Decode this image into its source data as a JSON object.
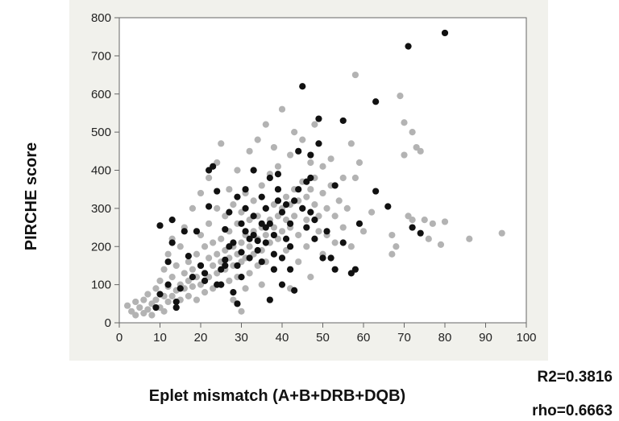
{
  "chart_data": {
    "type": "scatter",
    "xlabel": "Eplet mismatch (A+B+DRB+DQB)",
    "ylabel": "PIRCHE score",
    "xlim": [
      0,
      100
    ],
    "ylim": [
      0,
      800
    ],
    "xticks": [
      0,
      10,
      20,
      30,
      40,
      50,
      60,
      70,
      80,
      90,
      100
    ],
    "yticks": [
      0,
      100,
      200,
      300,
      400,
      500,
      600,
      700,
      800
    ],
    "grid": false,
    "legend": "none",
    "annotations": [
      {
        "text": "R2=0.3816"
      },
      {
        "text": "rho=0.6663"
      }
    ],
    "series": [
      {
        "color": "#b3b3b3",
        "points": [
          [
            2,
            45
          ],
          [
            3,
            30
          ],
          [
            4,
            20
          ],
          [
            4,
            55
          ],
          [
            5,
            40
          ],
          [
            6,
            25
          ],
          [
            6,
            60
          ],
          [
            7,
            35
          ],
          [
            7,
            75
          ],
          [
            8,
            50
          ],
          [
            8,
            20
          ],
          [
            9,
            90
          ],
          [
            9,
            60
          ],
          [
            10,
            40
          ],
          [
            10,
            110
          ],
          [
            11,
            70
          ],
          [
            11,
            140
          ],
          [
            11,
            30
          ],
          [
            12,
            95
          ],
          [
            12,
            55
          ],
          [
            12,
            180
          ],
          [
            13,
            120
          ],
          [
            13,
            70
          ],
          [
            13,
            220
          ],
          [
            14,
            85
          ],
          [
            14,
            150
          ],
          [
            14,
            40
          ],
          [
            15,
            100
          ],
          [
            15,
            200
          ],
          [
            15,
            60
          ],
          [
            16,
            130
          ],
          [
            16,
            90
          ],
          [
            16,
            250
          ],
          [
            17,
            110
          ],
          [
            17,
            160
          ],
          [
            17,
            70
          ],
          [
            18,
            140
          ],
          [
            18,
            95
          ],
          [
            18,
            300
          ],
          [
            19,
            120
          ],
          [
            19,
            180
          ],
          [
            19,
            60
          ],
          [
            20,
            150
          ],
          [
            20,
            100
          ],
          [
            20,
            230
          ],
          [
            20,
            340
          ],
          [
            21,
            130
          ],
          [
            21,
            200
          ],
          [
            21,
            80
          ],
          [
            22,
            170
          ],
          [
            22,
            120
          ],
          [
            22,
            260
          ],
          [
            22,
            380
          ],
          [
            23,
            150
          ],
          [
            23,
            210
          ],
          [
            23,
            90
          ],
          [
            24,
            180
          ],
          [
            24,
            130
          ],
          [
            24,
            300
          ],
          [
            24,
            420
          ],
          [
            25,
            160
          ],
          [
            25,
            220
          ],
          [
            25,
            100
          ],
          [
            25,
            470
          ],
          [
            26,
            190
          ],
          [
            26,
            140
          ],
          [
            26,
            280
          ],
          [
            27,
            170
          ],
          [
            27,
            240
          ],
          [
            27,
            110
          ],
          [
            27,
            350
          ],
          [
            28,
            200
          ],
          [
            28,
            150
          ],
          [
            28,
            310
          ],
          [
            28,
            60
          ],
          [
            29,
            180
          ],
          [
            29,
            260
          ],
          [
            29,
            120
          ],
          [
            29,
            400
          ],
          [
            30,
            210
          ],
          [
            30,
            160
          ],
          [
            30,
            290
          ],
          [
            30,
            30
          ],
          [
            31,
            230
          ],
          [
            31,
            170
          ],
          [
            31,
            340
          ],
          [
            31,
            90
          ],
          [
            32,
            200
          ],
          [
            32,
            270
          ],
          [
            32,
            130
          ],
          [
            32,
            450
          ],
          [
            33,
            240
          ],
          [
            33,
            180
          ],
          [
            33,
            320
          ],
          [
            34,
            220
          ],
          [
            34,
            280
          ],
          [
            34,
            150
          ],
          [
            34,
            480
          ],
          [
            35,
            250
          ],
          [
            35,
            190
          ],
          [
            35,
            360
          ],
          [
            35,
            100
          ],
          [
            36,
            230
          ],
          [
            36,
            300
          ],
          [
            36,
            160
          ],
          [
            36,
            520
          ],
          [
            37,
            270
          ],
          [
            37,
            210
          ],
          [
            37,
            390
          ],
          [
            38,
            250
          ],
          [
            38,
            310
          ],
          [
            38,
            140
          ],
          [
            38,
            460
          ],
          [
            39,
            280
          ],
          [
            39,
            220
          ],
          [
            39,
            410
          ],
          [
            40,
            300
          ],
          [
            40,
            240
          ],
          [
            40,
            170
          ],
          [
            40,
            560
          ],
          [
            41,
            270
          ],
          [
            41,
            330
          ],
          [
            41,
            190
          ],
          [
            42,
            310
          ],
          [
            42,
            250
          ],
          [
            42,
            440
          ],
          [
            42,
            90
          ],
          [
            43,
            280
          ],
          [
            43,
            350
          ],
          [
            43,
            500
          ],
          [
            44,
            320
          ],
          [
            44,
            230
          ],
          [
            44,
            160
          ],
          [
            45,
            300
          ],
          [
            45,
            370
          ],
          [
            45,
            480
          ],
          [
            46,
            270
          ],
          [
            46,
            330
          ],
          [
            46,
            200
          ],
          [
            47,
            350
          ],
          [
            47,
            420
          ],
          [
            47,
            120
          ],
          [
            48,
            310
          ],
          [
            48,
            380
          ],
          [
            48,
            520
          ],
          [
            49,
            280
          ],
          [
            49,
            240
          ],
          [
            50,
            340
          ],
          [
            50,
            410
          ],
          [
            50,
            180
          ],
          [
            51,
            300
          ],
          [
            51,
            230
          ],
          [
            52,
            360
          ],
          [
            52,
            430
          ],
          [
            53,
            280
          ],
          [
            53,
            210
          ],
          [
            54,
            320
          ],
          [
            55,
            250
          ],
          [
            55,
            380
          ],
          [
            56,
            300
          ],
          [
            57,
            470
          ],
          [
            57,
            200
          ],
          [
            58,
            650
          ],
          [
            58,
            380
          ],
          [
            59,
            420
          ],
          [
            60,
            240
          ],
          [
            62,
            290
          ],
          [
            67,
            180
          ],
          [
            67,
            230
          ],
          [
            68,
            200
          ],
          [
            69,
            595
          ],
          [
            70,
            525
          ],
          [
            70,
            440
          ],
          [
            71,
            280
          ],
          [
            72,
            500
          ],
          [
            72,
            270
          ],
          [
            73,
            460
          ],
          [
            74,
            450
          ],
          [
            75,
            270
          ],
          [
            76,
            220
          ],
          [
            77,
            260
          ],
          [
            79,
            205
          ],
          [
            80,
            265
          ],
          [
            86,
            220
          ],
          [
            94,
            235
          ]
        ]
      },
      {
        "color": "#111111",
        "points": [
          [
            9,
            40
          ],
          [
            10,
            75
          ],
          [
            10,
            255
          ],
          [
            12,
            160
          ],
          [
            12,
            100
          ],
          [
            13,
            210
          ],
          [
            13,
            270
          ],
          [
            14,
            40
          ],
          [
            14,
            55
          ],
          [
            15,
            90
          ],
          [
            16,
            240
          ],
          [
            17,
            175
          ],
          [
            18,
            120
          ],
          [
            19,
            240
          ],
          [
            20,
            150
          ],
          [
            21,
            130
          ],
          [
            21,
            110
          ],
          [
            22,
            400
          ],
          [
            22,
            305
          ],
          [
            23,
            410
          ],
          [
            24,
            100
          ],
          [
            24,
            345
          ],
          [
            25,
            140
          ],
          [
            25,
            100
          ],
          [
            26,
            165
          ],
          [
            26,
            150
          ],
          [
            26,
            245
          ],
          [
            27,
            290
          ],
          [
            27,
            200
          ],
          [
            28,
            80
          ],
          [
            28,
            210
          ],
          [
            29,
            150
          ],
          [
            29,
            50
          ],
          [
            29,
            330
          ],
          [
            30,
            260
          ],
          [
            30,
            185
          ],
          [
            30,
            120
          ],
          [
            31,
            300
          ],
          [
            31,
            240
          ],
          [
            31,
            350
          ],
          [
            32,
            220
          ],
          [
            32,
            170
          ],
          [
            33,
            230
          ],
          [
            33,
            280
          ],
          [
            33,
            400
          ],
          [
            34,
            190
          ],
          [
            34,
            215
          ],
          [
            35,
            260
          ],
          [
            35,
            160
          ],
          [
            35,
            330
          ],
          [
            36,
            300
          ],
          [
            36,
            210
          ],
          [
            36,
            250
          ],
          [
            37,
            260
          ],
          [
            37,
            380
          ],
          [
            37,
            60
          ],
          [
            38,
            230
          ],
          [
            38,
            140
          ],
          [
            38,
            180
          ],
          [
            39,
            390
          ],
          [
            39,
            320
          ],
          [
            39,
            350
          ],
          [
            40,
            290
          ],
          [
            40,
            170
          ],
          [
            40,
            100
          ],
          [
            41,
            310
          ],
          [
            41,
            220
          ],
          [
            42,
            200
          ],
          [
            42,
            140
          ],
          [
            42,
            260
          ],
          [
            43,
            320
          ],
          [
            43,
            85
          ],
          [
            44,
            350
          ],
          [
            44,
            450
          ],
          [
            45,
            620
          ],
          [
            45,
            300
          ],
          [
            46,
            370
          ],
          [
            46,
            250
          ],
          [
            47,
            440
          ],
          [
            47,
            380
          ],
          [
            47,
            290
          ],
          [
            48,
            220
          ],
          [
            48,
            270
          ],
          [
            49,
            470
          ],
          [
            49,
            535
          ],
          [
            50,
            170
          ],
          [
            51,
            240
          ],
          [
            52,
            170
          ],
          [
            53,
            140
          ],
          [
            53,
            360
          ],
          [
            55,
            210
          ],
          [
            55,
            530
          ],
          [
            57,
            130
          ],
          [
            58,
            140
          ],
          [
            59,
            260
          ],
          [
            63,
            345
          ],
          [
            63,
            580
          ],
          [
            66,
            305
          ],
          [
            71,
            725
          ],
          [
            72,
            250
          ],
          [
            74,
            235
          ],
          [
            80,
            760
          ]
        ]
      }
    ]
  }
}
